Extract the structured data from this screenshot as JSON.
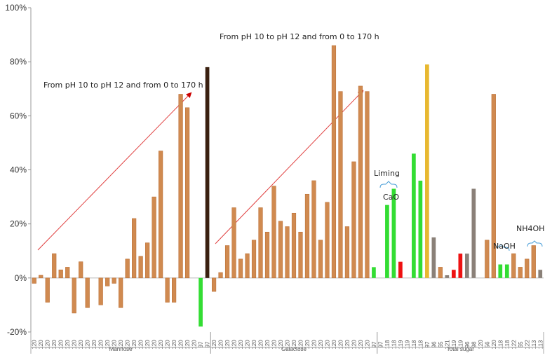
{
  "chart_data": {
    "type": "bar",
    "ylim": [
      -20,
      100
    ],
    "yticks": [
      {
        "value": -20,
        "label": "-20%"
      },
      {
        "value": 0,
        "label": "0%"
      },
      {
        "value": 20,
        "label": "20%"
      },
      {
        "value": 40,
        "label": "40%"
      },
      {
        "value": 60,
        "label": "60%"
      },
      {
        "value": 80,
        "label": "80%"
      },
      {
        "value": 100,
        "label": "100%"
      }
    ],
    "groups": [
      {
        "label": "Mannose",
        "categories": [
          "120",
          "120",
          "120",
          "120",
          "120",
          "120",
          "120",
          "120",
          "120",
          "120",
          "120",
          "120",
          "120",
          "120",
          "120",
          "120",
          "120",
          "120",
          "120",
          "120",
          "120",
          "120",
          "120",
          "120",
          "120",
          "97",
          "97"
        ],
        "values": [
          -2,
          1,
          -9,
          9,
          3,
          4,
          -13,
          6,
          -11,
          0,
          -10,
          -3,
          -2,
          -11,
          7,
          22,
          8,
          13,
          30,
          47,
          -9,
          -9,
          68,
          63,
          0,
          -18,
          78
        ],
        "colors": [
          "#d08a50",
          "#d08a50",
          "#d08a50",
          "#d08a50",
          "#d08a50",
          "#d08a50",
          "#d08a50",
          "#d08a50",
          "#d08a50",
          "#d08a50",
          "#d08a50",
          "#d08a50",
          "#d08a50",
          "#d08a50",
          "#d08a50",
          "#d08a50",
          "#d08a50",
          "#d08a50",
          "#d08a50",
          "#d08a50",
          "#d08a50",
          "#d08a50",
          "#d08a50",
          "#d08a50",
          "#d08a50",
          "#33dd33",
          "#3a2010"
        ]
      },
      {
        "label": "Galactose",
        "categories": [
          "120",
          "120",
          "120",
          "120",
          "120",
          "120",
          "120",
          "120",
          "120",
          "120",
          "120",
          "120",
          "120",
          "120",
          "120",
          "120",
          "120",
          "120",
          "120",
          "120",
          "120",
          "120",
          "120",
          "120",
          "97"
        ],
        "values": [
          -5,
          2,
          12,
          26,
          7,
          9,
          14,
          26,
          17,
          34,
          21,
          19,
          24,
          17,
          31,
          36,
          14,
          28,
          86,
          69,
          19,
          43,
          71,
          69,
          4
        ],
        "colors": [
          "#d08a50",
          "#d08a50",
          "#d08a50",
          "#d08a50",
          "#d08a50",
          "#d08a50",
          "#d08a50",
          "#d08a50",
          "#d08a50",
          "#d08a50",
          "#d08a50",
          "#d08a50",
          "#d08a50",
          "#d08a50",
          "#d08a50",
          "#d08a50",
          "#d08a50",
          "#d08a50",
          "#d08a50",
          "#d08a50",
          "#d08a50",
          "#d08a50",
          "#d08a50",
          "#d08a50",
          "#33dd33"
        ]
      },
      {
        "label": "Total sugar",
        "categories": [
          "97",
          "118",
          "118",
          "119",
          "119",
          "118",
          "118",
          "97",
          "96",
          "65",
          "121",
          "119",
          "119",
          "96",
          "98",
          "120",
          "56",
          "120",
          "118",
          "118",
          "122",
          "65",
          "122",
          "113",
          "113"
        ],
        "values": [
          0,
          27,
          33,
          6,
          0,
          46,
          36,
          79,
          15,
          4,
          1,
          3,
          9,
          9,
          33,
          0,
          14,
          68,
          5,
          5,
          9,
          4,
          7,
          12,
          3
        ],
        "colors": [
          "#d08a50",
          "#33dd33",
          "#33dd33",
          "#ee1111",
          "#ee1111",
          "#33dd33",
          "#33dd33",
          "#e8b830",
          "#8a8078",
          "#d08a50",
          "#8a8078",
          "#ee1111",
          "#ee1111",
          "#8a8078",
          "#8a8078",
          "#d08a50",
          "#d08a50",
          "#d08a50",
          "#33dd33",
          "#33dd33",
          "#d08a50",
          "#d08a50",
          "#d08a50",
          "#d08a50",
          "#8a8078"
        ]
      }
    ],
    "annotations": [
      "From pH 10 to pH 12 and from 0 to 170 h",
      "From pH 10 to pH 12 and from 0 to 170 h",
      "Liming",
      "CaO",
      "NaOH",
      "NH4OH"
    ]
  }
}
